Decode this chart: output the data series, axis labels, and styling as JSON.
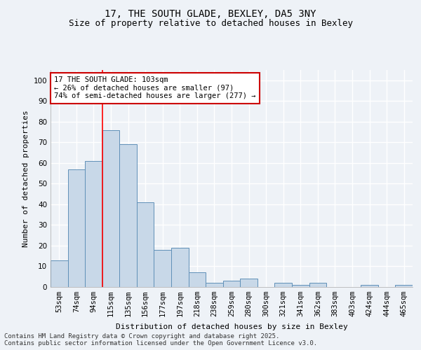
{
  "title_line1": "17, THE SOUTH GLADE, BEXLEY, DA5 3NY",
  "title_line2": "Size of property relative to detached houses in Bexley",
  "xlabel": "Distribution of detached houses by size in Bexley",
  "ylabel": "Number of detached properties",
  "categories": [
    "53sqm",
    "74sqm",
    "94sqm",
    "115sqm",
    "135sqm",
    "156sqm",
    "177sqm",
    "197sqm",
    "218sqm",
    "238sqm",
    "259sqm",
    "280sqm",
    "300sqm",
    "321sqm",
    "341sqm",
    "362sqm",
    "383sqm",
    "403sqm",
    "424sqm",
    "444sqm",
    "465sqm"
  ],
  "values": [
    13,
    57,
    61,
    76,
    69,
    41,
    18,
    19,
    7,
    2,
    3,
    4,
    0,
    2,
    1,
    2,
    0,
    0,
    1,
    0,
    1
  ],
  "bar_color": "#c8d8e8",
  "bar_edge_color": "#6090b8",
  "ylim": [
    0,
    105
  ],
  "yticks": [
    0,
    10,
    20,
    30,
    40,
    50,
    60,
    70,
    80,
    90,
    100
  ],
  "red_line_x": 2.5,
  "annotation_line1": "17 THE SOUTH GLADE: 103sqm",
  "annotation_line2": "← 26% of detached houses are smaller (97)",
  "annotation_line3": "74% of semi-detached houses are larger (277) →",
  "annotation_box_color": "#ffffff",
  "annotation_box_edge_color": "#cc0000",
  "footer_line1": "Contains HM Land Registry data © Crown copyright and database right 2025.",
  "footer_line2": "Contains public sector information licensed under the Open Government Licence v3.0.",
  "background_color": "#eef2f7",
  "grid_color": "#ffffff",
  "title_fontsize": 10,
  "subtitle_fontsize": 9,
  "axis_label_fontsize": 8,
  "tick_fontsize": 7.5,
  "annotation_fontsize": 7.5,
  "footer_fontsize": 6.5
}
